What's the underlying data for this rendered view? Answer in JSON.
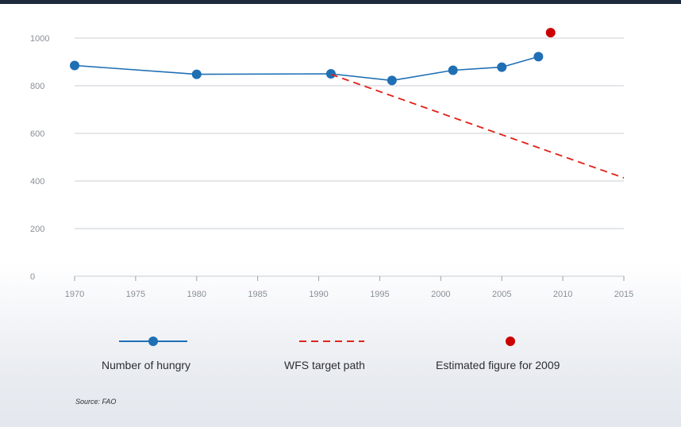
{
  "chart_data": {
    "type": "line",
    "x_ticks": [
      1970,
      1975,
      1980,
      1985,
      1990,
      1995,
      2000,
      2005,
      2010,
      2015
    ],
    "x_tick_labels": [
      "1970",
      "1975",
      "1980",
      "1985",
      "1990",
      "1995",
      "2000",
      "2005",
      "2010",
      "2015"
    ],
    "y_ticks": [
      0,
      200,
      400,
      600,
      800,
      1000
    ],
    "y_tick_labels": [
      "0",
      "200",
      "400",
      "600",
      "800",
      "1000"
    ],
    "xlim": [
      1970,
      2015
    ],
    "ylim": [
      0,
      1000
    ],
    "grid": "horizontal",
    "series": [
      {
        "name": "Number of hungry",
        "style": "line-with-markers",
        "color": "#1f6fb4",
        "x": [
          1970,
          1980,
          1991,
          1996,
          2001,
          2005,
          2008
        ],
        "y": [
          885,
          848,
          850,
          822,
          865,
          878,
          922
        ]
      },
      {
        "name": "WFS target path",
        "style": "dashed",
        "color": "#e2231a",
        "x": [
          1991,
          2015
        ],
        "y": [
          848,
          413
        ]
      },
      {
        "name": "Estimated figure for 2009",
        "style": "marker",
        "color": "#cc0000",
        "x": [
          2009
        ],
        "y": [
          1023
        ]
      }
    ],
    "legend_position": "bottom"
  },
  "legend": {
    "hungry_label": "Number of hungry",
    "target_label": "WFS target path",
    "estimate_label": "Estimated figure for 2009"
  },
  "source": "Source: FAO"
}
